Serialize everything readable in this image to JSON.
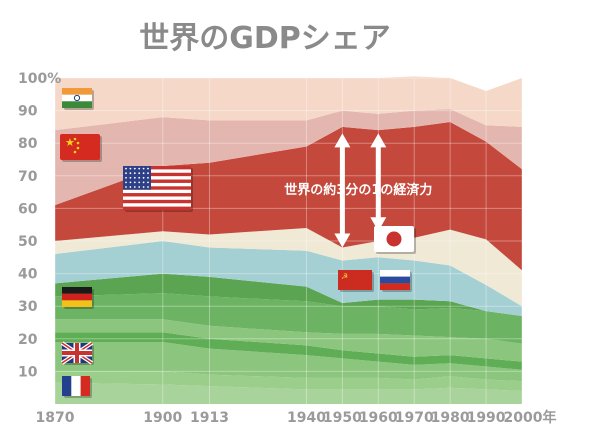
{
  "chart_data": {
    "type": "area",
    "title": "世界のGDPシェア",
    "ylim": [
      0,
      100
    ],
    "y_ticks": [
      "100%",
      "90",
      "80",
      "70",
      "60",
      "50",
      "40",
      "30",
      "20",
      "10"
    ],
    "y_tick_values": [
      100,
      90,
      80,
      70,
      60,
      50,
      40,
      30,
      20,
      10
    ],
    "x": [
      1870,
      1900,
      1913,
      1940,
      1950,
      1960,
      1970,
      1980,
      1990,
      2000
    ],
    "x_tick_labels": [
      "1870",
      "1900",
      "1913",
      "1940",
      "1950",
      "1960",
      "1970",
      "1980",
      "1990",
      "2000年"
    ],
    "grid": true,
    "series": [
      {
        "flag": "france",
        "color": "#a8d39a",
        "values": [
          6.5,
          6,
          5.5,
          4.5,
          4.5,
          4.5,
          4.5,
          5,
          4.5,
          4
        ]
      },
      {
        "flag": "",
        "color": "#9bcd8b",
        "values": [
          3.5,
          4,
          3.5,
          3.5,
          3.5,
          3.5,
          3,
          3.5,
          3,
          3
        ]
      },
      {
        "flag": "united-kingdom",
        "color": "#8cc57e",
        "values": [
          9,
          9,
          8,
          7,
          6,
          5,
          4.5,
          4,
          4,
          3.5
        ]
      },
      {
        "flag": "",
        "color": "#5fae55",
        "values": [
          3,
          3,
          3,
          3,
          2.5,
          2.5,
          2.5,
          2.5,
          2.5,
          2.5
        ]
      },
      {
        "flag": "",
        "color": "#8cc57e",
        "values": [
          4,
          4,
          4,
          4,
          5,
          6,
          6.5,
          5.5,
          6,
          5.5
        ]
      },
      {
        "flag": "germany",
        "color": "#6cb363",
        "values": [
          7,
          8,
          9,
          9.5,
          8.5,
          8.5,
          8,
          9,
          8.5,
          8.5
        ]
      },
      {
        "flag": "",
        "color": "#5aa452",
        "values": [
          4,
          6,
          6,
          4.5,
          1,
          2,
          3,
          2,
          0,
          0
        ]
      },
      {
        "flag": "soviet-union / russia",
        "color": "#a4d0d4",
        "values": [
          9,
          10,
          9,
          11,
          13,
          13,
          12,
          11,
          8,
          3
        ]
      },
      {
        "flag": "japan",
        "color": "#efe9d6",
        "values": [
          4,
          3,
          4,
          7,
          4,
          5,
          7,
          11,
          14,
          11
        ]
      },
      {
        "flag": "united-states",
        "color": "#c4483c",
        "values": [
          11,
          20,
          22,
          25,
          37,
          34,
          34,
          33,
          30,
          31
        ]
      },
      {
        "flag": "china",
        "color": "#e3b7b0",
        "values": [
          23,
          15,
          13,
          8,
          5,
          5,
          5,
          4,
          5,
          13
        ]
      },
      {
        "flag": "india",
        "color": "#f5d8c8",
        "values": [
          16,
          12,
          13,
          13,
          10,
          11,
          10.5,
          9.5,
          10.5,
          15
        ]
      }
    ],
    "annotations": [
      {
        "text": "世界の約3分の1の経済力",
        "x": 1955,
        "y": 66
      }
    ]
  }
}
